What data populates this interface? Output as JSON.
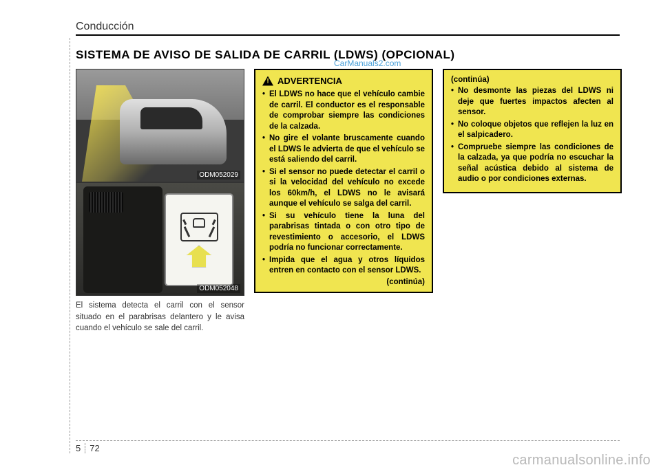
{
  "header": {
    "section": "Conducción"
  },
  "title": "SISTEMA DE AVISO DE SALIDA DE CARRIL (LDWS) (OPCIONAL)",
  "watermark_link": "CarManuals2.com",
  "img1": {
    "label": "ODM052029",
    "bg_color": "#5a5a5a"
  },
  "img2": {
    "label": "ODM052048",
    "panel_bg": "#f5f5f0",
    "arrow_color": "#e8e050"
  },
  "caption": "El sistema detecta el carril con el sensor situado en el parabrisas delantero y le avisa cuando el vehículo se sale del carril.",
  "warning1": {
    "title": "ADVERTENCIA",
    "items": [
      "El LDWS no hace que el vehículo cambie de carril. El conductor es el responsable de comprobar siempre las condiciones de la calzada.",
      "No gire el volante bruscamente cuando el LDWS le advierta de que el vehículo se está saliendo del carril.",
      "Si el sensor no puede detectar el carril o si la velocidad del vehículo no excede los 60km/h, el LDWS no le avisará aunque el vehículo se salga del carril.",
      "Si su vehículo tiene la luna del parabrisas tintada o con otro tipo de revestimiento o accesorio, el LDWS podría no funcionar correctamente.",
      "Impida que el agua y otros líquidos entren en contacto con el sensor LDWS."
    ],
    "continues": "(continúa)"
  },
  "warning2": {
    "continues_from": "(continúa)",
    "items": [
      "No desmonte las piezas del LDWS ni deje que fuertes impactos afecten al sensor.",
      "No coloque objetos que reflejen la luz en el salpicadero.",
      "Compruebe siempre las condiciones de la calzada, ya que podría no escuchar la señal acústica debido al sistema de audio o por condiciones externas."
    ]
  },
  "footer": {
    "chapter": "5",
    "page": "72"
  },
  "bottom_watermark": "carmanualsonline.info",
  "colors": {
    "warning_bg": "#f0e550",
    "warning_border": "#000000",
    "text": "#333333",
    "link": "#4aa0d8"
  }
}
